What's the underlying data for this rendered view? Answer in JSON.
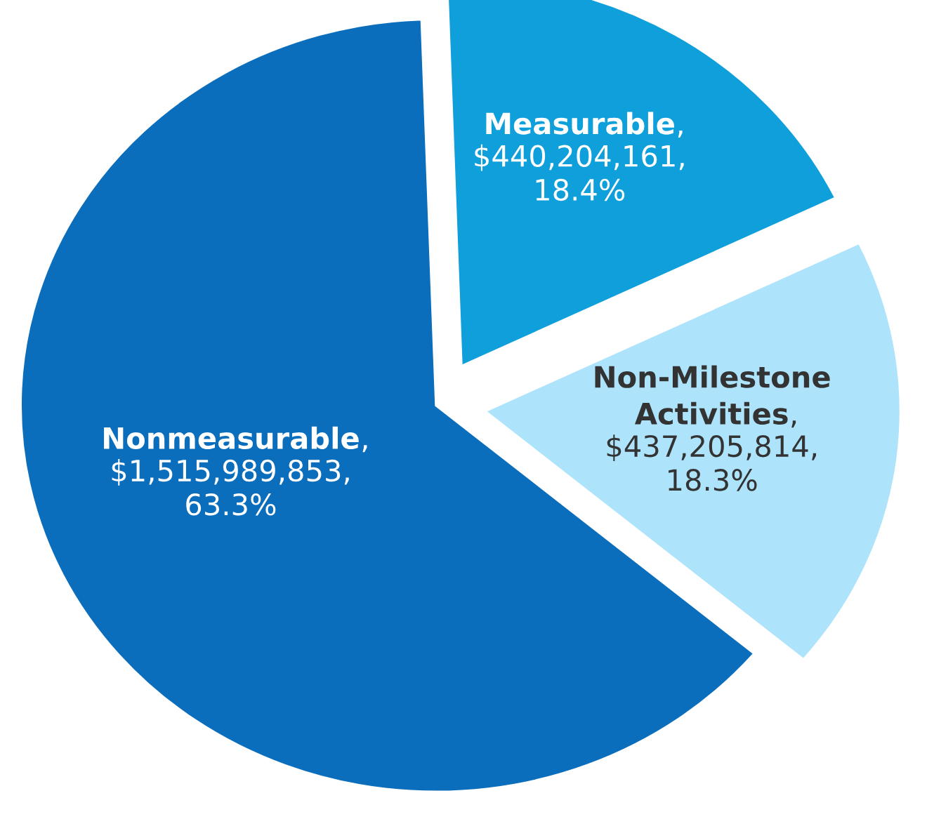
{
  "chart_data": {
    "type": "pie",
    "categories": [
      "Measurable",
      "Non-Milestone\nActivities",
      "Nonmeasurable"
    ],
    "values": [
      440204161,
      437205814,
      1515989853
    ],
    "colors": [
      "#0f9fdb",
      "#aee4fb",
      "#0a6ebd"
    ],
    "value_labels": [
      ",\n$440,204,161,\n18.4%",
      ",\n$437,205,814,\n18.3%",
      ",\n$1,515,989,853,\n63.3%"
    ],
    "legend": false
  }
}
